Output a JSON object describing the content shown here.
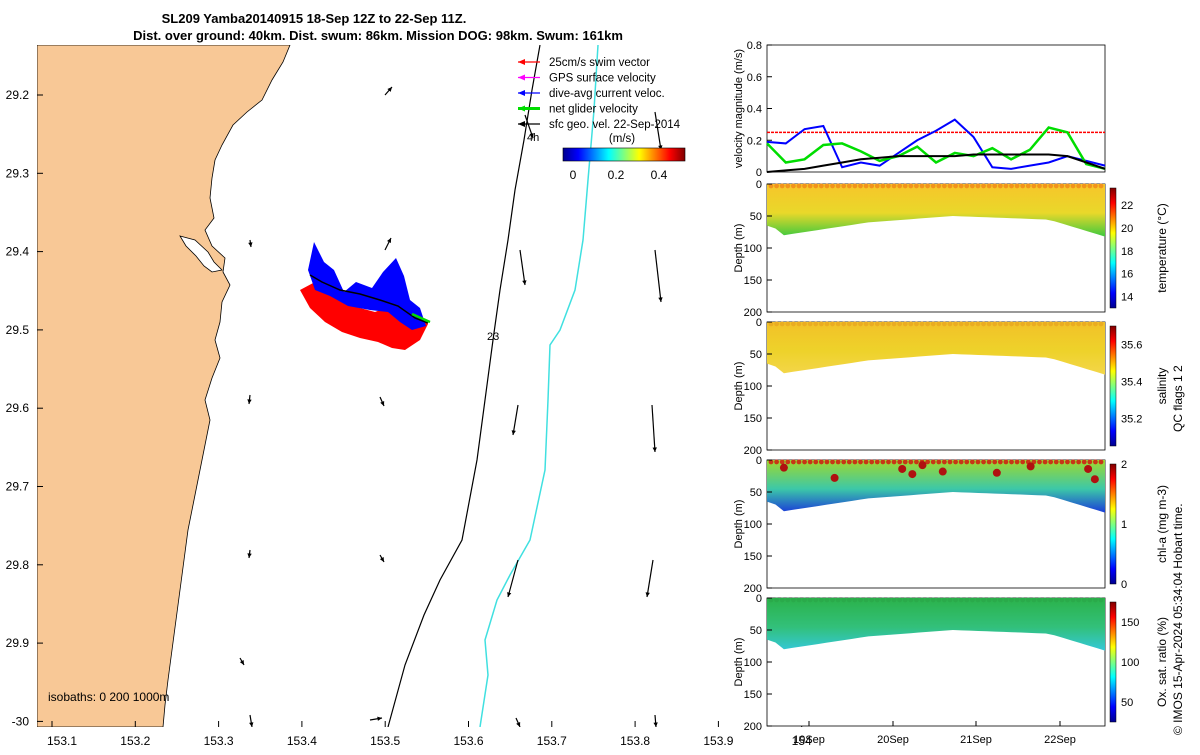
{
  "title": {
    "line1": "SL209 Yamba20140915 18-Sep 12Z to 22-Sep 11Z.",
    "line2": "Dist. over ground: 40km. Dist. swum: 86km. Mission DOG: 98km. Swum: 161km"
  },
  "map": {
    "x_ticks": [
      "153.1",
      "153.2",
      "153.3",
      "153.4",
      "153.5",
      "153.6",
      "153.7",
      "153.8",
      "153.9",
      "154"
    ],
    "y_ticks": [
      "29.2",
      "29.3",
      "29.4",
      "29.5",
      "29.6",
      "29.7",
      "29.8",
      "29.9",
      "-30"
    ],
    "xlim": [
      153.07,
      154.1
    ],
    "ylim": [
      -30.02,
      -29.15
    ],
    "legend": [
      {
        "label": "25cm/s swim vector",
        "color": "#ff0000"
      },
      {
        "label": "GPS surface velocity",
        "color": "#ff00ff"
      },
      {
        "label": "dive-avg current veloc.",
        "color": "#0000ff"
      },
      {
        "label": "net glider velocity",
        "color": "#00dd00"
      },
      {
        "label": "sfc geo. vel. 22-Sep-2014",
        "color": "#000000"
      }
    ],
    "colorbar_unit": "(m/s)",
    "colorbar_ticks": [
      "0",
      "0.2",
      "0.4"
    ],
    "isobath_label": "isobaths: 0   200  1000m",
    "annotation_4h": "4h",
    "annotation_23": "23",
    "land_color": "#f8c896"
  },
  "chart_data": [
    {
      "type": "line",
      "ylabel": "velocity magnitude (m/s)",
      "ylim": [
        0,
        0.8
      ],
      "y_ticks": [
        "0",
        "0.2",
        "0.4",
        "0.6",
        "0.8"
      ],
      "series": [
        {
          "color": "#ff0000",
          "values": [
            0.25,
            0.25,
            0.25,
            0.25,
            0.25,
            0.25,
            0.25,
            0.25,
            0.25,
            0.25,
            0.25,
            0.25,
            0.25,
            0.25,
            0.25,
            0.25,
            0.25,
            0.25,
            0.25
          ]
        },
        {
          "color": "#0000ff",
          "values": [
            0.19,
            0.18,
            0.27,
            0.29,
            0.03,
            0.06,
            0.04,
            0.12,
            0.2,
            0.26,
            0.33,
            0.22,
            0.03,
            0.02,
            0.04,
            0.06,
            0.1,
            0.07,
            0.04
          ]
        },
        {
          "color": "#00dd00",
          "values": [
            0.18,
            0.06,
            0.08,
            0.17,
            0.18,
            0.13,
            0.07,
            0.1,
            0.16,
            0.06,
            0.12,
            0.1,
            0.15,
            0.08,
            0.14,
            0.28,
            0.25,
            0.05,
            0.02
          ]
        },
        {
          "color": "#000000",
          "values": [
            0.0,
            0.01,
            0.02,
            0.04,
            0.06,
            0.08,
            0.09,
            0.1,
            0.1,
            0.1,
            0.1,
            0.11,
            0.11,
            0.11,
            0.11,
            0.11,
            0.1,
            0.06,
            0.02
          ]
        }
      ]
    },
    {
      "type": "heatmap",
      "ylabel": "Depth (m)",
      "cblabel": "temperature (°C)",
      "cb_ticks": [
        "22",
        "20",
        "18",
        "16",
        "14"
      ],
      "cb_range": [
        13,
        23.5
      ]
    },
    {
      "type": "heatmap",
      "ylabel": "Depth (m)",
      "cblabel": "salinity",
      "cb_ticks": [
        "35.6",
        "35.4",
        "35.2"
      ],
      "cb_range": [
        35.05,
        35.7
      ]
    },
    {
      "type": "heatmap",
      "ylabel": "Depth (m)",
      "cblabel": "chl-a (mg m-3)",
      "cb_ticks": [
        "2",
        "1",
        "0"
      ],
      "cb_range": [
        0,
        2
      ]
    },
    {
      "type": "heatmap",
      "ylabel": "Depth (m)",
      "cblabel": "Ox. sat. ratio (%)",
      "cb_ticks": [
        "150",
        "100",
        "50"
      ],
      "cb_range": [
        25,
        175
      ]
    }
  ],
  "depth_ticks": [
    "0",
    "50",
    "100",
    "150",
    "200"
  ],
  "time_ticks": [
    "19Sep",
    "20Sep",
    "21Sep",
    "22Sep"
  ],
  "side_text": {
    "qc": "QC flags 1  2",
    "credit": "© IMOS 15-Apr-2024 05:34:04 Hobart time."
  }
}
